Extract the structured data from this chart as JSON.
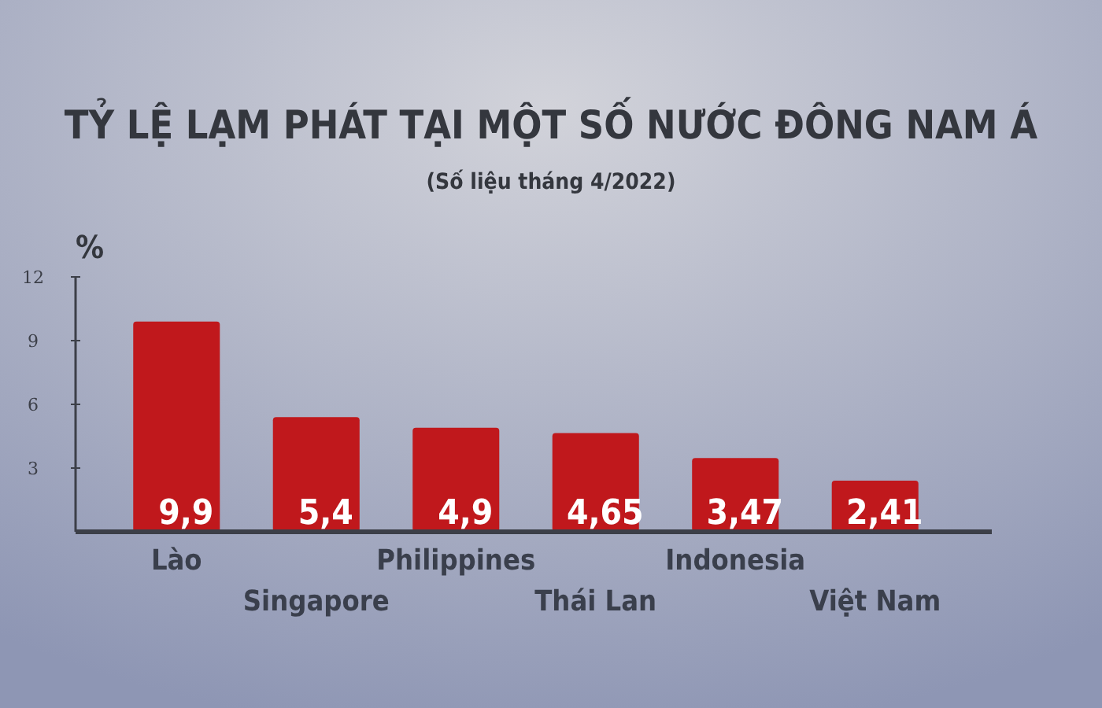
{
  "chart_data": {
    "type": "bar",
    "title": "TỶ LỆ LẠM PHÁT TẠI MỘT SỐ NƯỚC ĐÔNG NAM Á",
    "subtitle": "(Số liệu tháng 4/2022)",
    "ylabel": "%",
    "categories": [
      "Lào",
      "Singapore",
      "Philippines",
      "Thái Lan",
      "Indonesia",
      "Việt Nam"
    ],
    "values": [
      9.9,
      5.4,
      4.9,
      4.65,
      3.47,
      2.41
    ],
    "value_labels": [
      "9,9",
      "5,4",
      "4,9",
      "4,65",
      "3,47",
      "2,41"
    ],
    "color": "#c0181c",
    "ylim": [
      0,
      12
    ],
    "yticks": [
      3,
      6,
      9,
      12
    ]
  }
}
